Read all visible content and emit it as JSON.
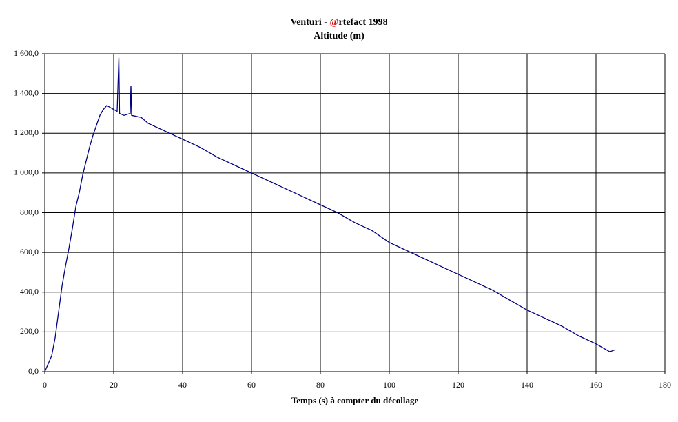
{
  "chart_data": {
    "type": "line",
    "title": "Venturi - @rtefact 1998",
    "subtitle": "Altitude (m)",
    "x_label": "Temps (s) à compter du décollage",
    "x": [
      0,
      1,
      2,
      3,
      4,
      5,
      6,
      7,
      8,
      9,
      10,
      11,
      12,
      13,
      14,
      15,
      16,
      17,
      18,
      19,
      20,
      21,
      21.5,
      21.7,
      23,
      24.8,
      25,
      25.2,
      28,
      30,
      35,
      40,
      45,
      50,
      55,
      60,
      65,
      70,
      75,
      80,
      85,
      90,
      95,
      100,
      105,
      110,
      115,
      120,
      125,
      130,
      135,
      140,
      145,
      150,
      155,
      160,
      162,
      164,
      165.5
    ],
    "series": [
      {
        "name": "Altitude",
        "color": "#000080",
        "values": [
          0,
          40,
          80,
          170,
          300,
          430,
          530,
          620,
          720,
          830,
          900,
          990,
          1060,
          1130,
          1190,
          1240,
          1290,
          1320,
          1340,
          1330,
          1320,
          1310,
          1580,
          1300,
          1290,
          1300,
          1440,
          1290,
          1280,
          1250,
          1210,
          1170,
          1130,
          1080,
          1040,
          1000,
          960,
          920,
          880,
          840,
          800,
          750,
          710,
          650,
          610,
          570,
          530,
          490,
          450,
          410,
          360,
          310,
          270,
          230,
          180,
          140,
          120,
          100,
          110
        ]
      }
    ],
    "xlim": [
      0,
      180
    ],
    "xticks": [
      0,
      20,
      40,
      60,
      80,
      100,
      120,
      140,
      160,
      180
    ],
    "ylim": [
      0,
      1600
    ],
    "yticks": [
      {
        "value": 0,
        "label": "0,0"
      },
      {
        "value": 200,
        "label": "200,0"
      },
      {
        "value": 400,
        "label": "400,0"
      },
      {
        "value": 600,
        "label": "600,0"
      },
      {
        "value": 800,
        "label": "800,0"
      },
      {
        "value": 1000,
        "label": "1 000,0"
      },
      {
        "value": 1200,
        "label": "1 200,0"
      },
      {
        "value": 1400,
        "label": "1 400,0"
      },
      {
        "value": 1600,
        "label": "1 600,0"
      }
    ],
    "grid": true
  }
}
